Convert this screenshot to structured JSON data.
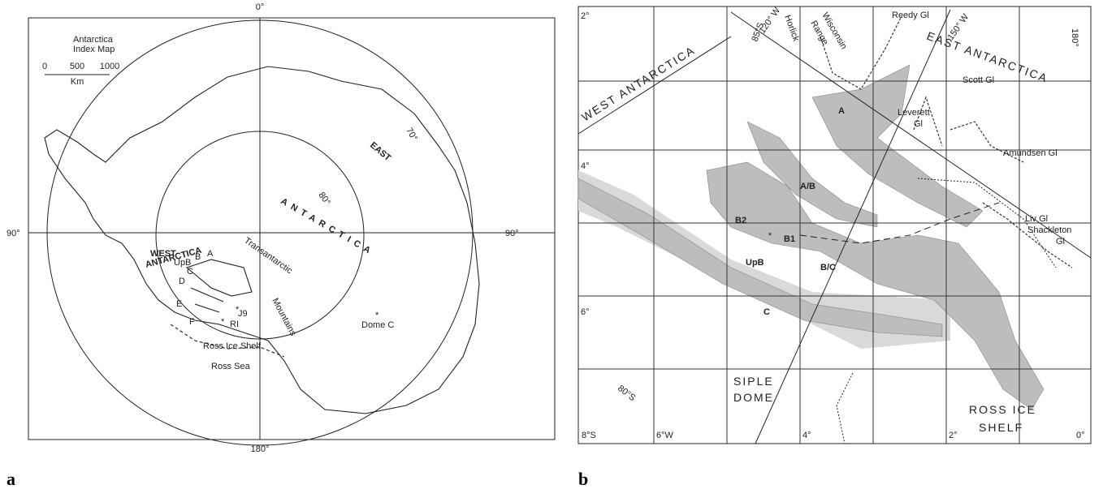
{
  "panel_a": {
    "label": "a",
    "title": [
      "Antarctica",
      "Index Map"
    ],
    "scale": {
      "ticks": [
        "0",
        "500",
        "1000"
      ],
      "unit": "Km"
    },
    "longitudes": [
      "0°",
      "90°",
      "90°",
      "180°"
    ],
    "latitudes": [
      "70°",
      "80°"
    ],
    "regions": [
      "EAST",
      "ANTARCTICA",
      "WEST",
      "ANTARCTICA"
    ],
    "features": [
      [
        "Transantarctic",
        "Mountains"
      ],
      "Ross Ice Shelf",
      "Ross Sea",
      "Dome C"
    ],
    "ice_streams": [
      "UpB",
      "A",
      "B",
      "C",
      "D",
      "E",
      "F"
    ],
    "sites": [
      "J9",
      "RI"
    ]
  },
  "panel_b": {
    "label": "b",
    "grid_labels": [
      "2°",
      "4°",
      "6°",
      "8°S",
      "6°W",
      "4°",
      "2°",
      "0°"
    ],
    "meridians": [
      "85°S",
      "120° W",
      "150° W",
      "180°",
      "80°S"
    ],
    "regions": [
      "WEST ANTARCTICA",
      "EAST ANTARCTICA",
      "SIPLE",
      "DOME",
      "ROSS ICE",
      "SHELF"
    ],
    "glaciers": [
      "Horlick",
      "Wisconsin",
      "Range",
      "Reedy Gl",
      "Scott Gl",
      "Leverett",
      "Gl",
      "Amundsen Gl",
      "Liv Gl",
      "Shackleton",
      "Gl"
    ],
    "ice_streams": [
      "A",
      "A/B",
      "B2",
      "B1",
      "UpB",
      "B/C",
      "C"
    ]
  }
}
